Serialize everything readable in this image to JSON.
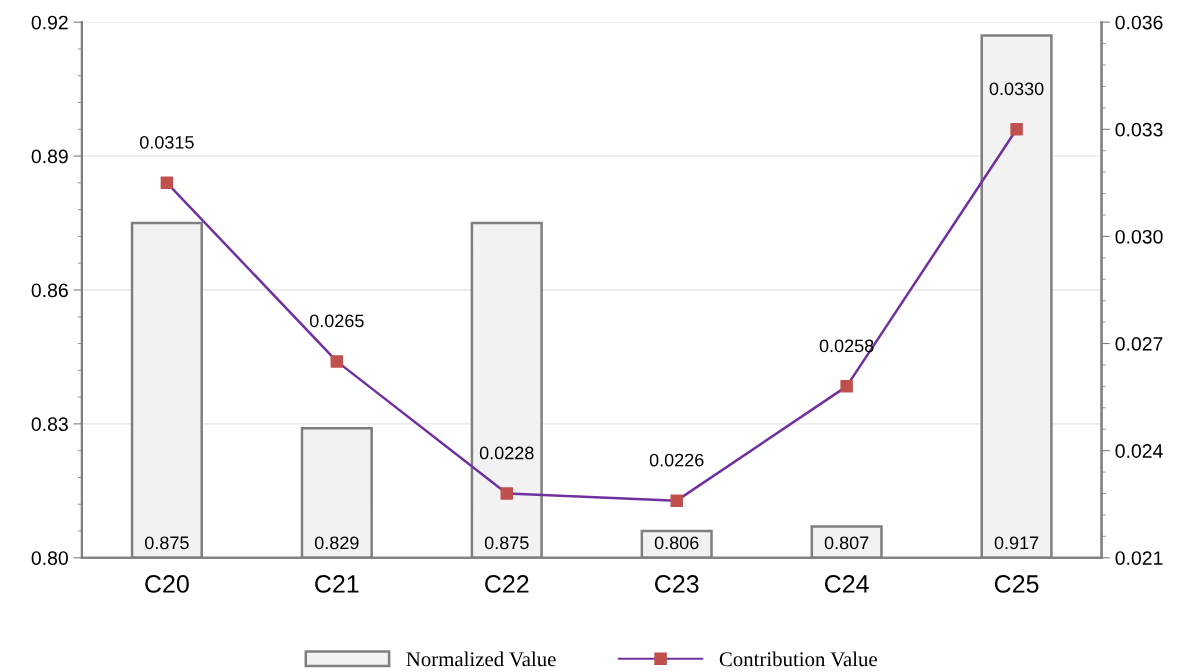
{
  "chart_data": {
    "type": "bar",
    "categories": [
      "C20",
      "C21",
      "C22",
      "C23",
      "C24",
      "C25"
    ],
    "series": [
      {
        "name": "Normalized Value",
        "color": "#f2f2f2",
        "values": [
          0.875,
          0.829,
          0.875,
          0.806,
          0.807,
          0.917
        ],
        "value_labels": [
          "0.875",
          "0.829",
          "0.875",
          "0.806",
          "0.807",
          "0.917"
        ]
      },
      {
        "name": "Contribution Value",
        "type": "line",
        "axis": "y2",
        "color": "#7030a0",
        "colors": [
          "#c0504d",
          "#c0504d",
          "#c0504d",
          "#c0504d",
          "#c0504d",
          "#c0504d"
        ],
        "values": [
          0.0315,
          0.0265,
          0.0228,
          0.0226,
          0.0258,
          0.033
        ],
        "value_labels": [
          "0.0315",
          "0.0265",
          "0.0228",
          "0.0226",
          "0.0258",
          "0.0330"
        ]
      }
    ],
    "ylim": [
      0.8,
      0.92
    ],
    "yticks": [
      {
        "value": 0.8,
        "label": "0.80"
      },
      {
        "value": 0.83,
        "label": "0.83"
      },
      {
        "value": 0.86,
        "label": "0.86"
      },
      {
        "value": 0.89,
        "label": "0.89"
      },
      {
        "value": 0.92,
        "label": "0.92"
      }
    ],
    "y2lim": [
      0.021,
      0.036
    ],
    "y2ticks": [
      0.021,
      0.024,
      0.027,
      {
        "value": 0.03,
        "label": "0.030"
      },
      0.033,
      0.036
    ],
    "grid": "y",
    "legend": "bottom",
    "marker": "square",
    "line_style": "solid"
  }
}
